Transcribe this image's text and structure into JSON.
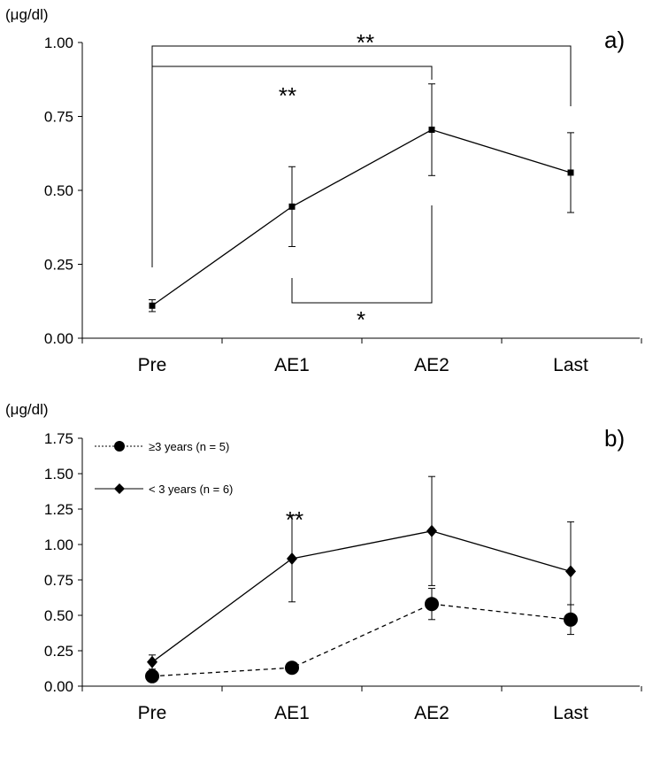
{
  "chart_data": [
    {
      "type": "line",
      "panel_label": "a)",
      "unit_label": "(μg/dl)",
      "categories": [
        "Pre",
        "AE1",
        "AE2",
        "Last"
      ],
      "ylim": [
        0,
        1.0
      ],
      "yticks": [
        "0.00",
        "0.25",
        "0.50",
        "0.75",
        "1.00"
      ],
      "grid": false,
      "series": [
        {
          "values": [
            0.11,
            0.445,
            0.705,
            0.56
          ],
          "error": [
            0.02,
            0.135,
            0.155,
            0.135
          ],
          "color": "#000000",
          "marker": "square",
          "dash": "solid"
        }
      ],
      "significance": [
        {
          "label": "**",
          "from": 0,
          "to": 3,
          "kind": "bracket-top"
        },
        {
          "label": "**",
          "from": 0,
          "to": 2,
          "kind": "bracket-top"
        },
        {
          "label": "*",
          "from": 1,
          "to": 2,
          "kind": "bracket-bottom"
        }
      ]
    },
    {
      "type": "line",
      "panel_label": "b)",
      "unit_label": "(μg/dl)",
      "categories": [
        "Pre",
        "AE1",
        "AE2",
        "Last"
      ],
      "ylim": [
        0,
        1.75
      ],
      "yticks": [
        "0.00",
        "0.25",
        "0.50",
        "0.75",
        "1.00",
        "1.25",
        "1.50",
        "1.75"
      ],
      "grid": false,
      "legend_position": "top-left",
      "series": [
        {
          "name": "≥3 years (n = 5)",
          "values": [
            0.07,
            0.13,
            0.58,
            0.47
          ],
          "error": [
            0.02,
            0.01,
            0.11,
            0.105
          ],
          "color": "#000000",
          "marker": "circle",
          "dash": "dashed"
        },
        {
          "name": "< 3 years (n = 6)",
          "values": [
            0.17,
            0.9,
            1.095,
            0.81
          ],
          "error": [
            0.05,
            0.305,
            0.385,
            0.35
          ],
          "color": "#000000",
          "marker": "diamond",
          "dash": "solid"
        }
      ],
      "significance": [
        {
          "label": "**",
          "at": 1,
          "kind": "marker"
        }
      ]
    }
  ]
}
